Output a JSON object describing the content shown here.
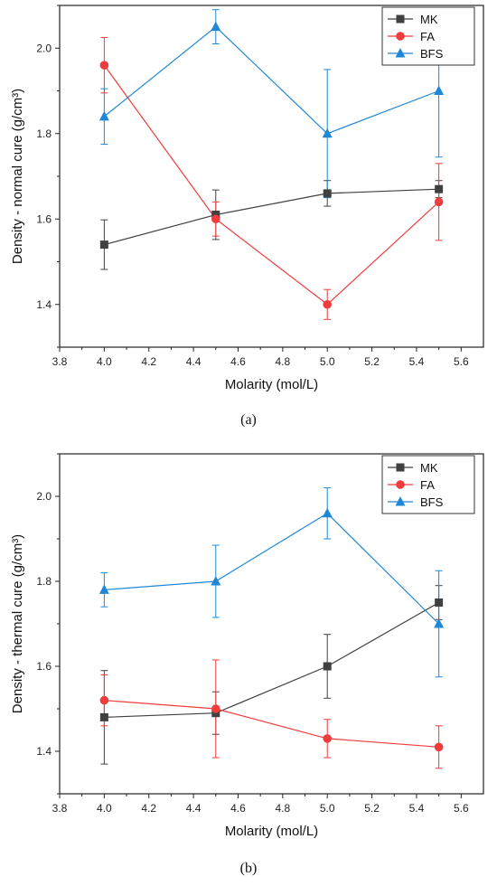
{
  "chart_data": [
    {
      "type": "line",
      "panel": "(a)",
      "xlabel": "Molarity (mol/L)",
      "ylabel": "Density - normal cure (g/cm³)",
      "xlim": [
        3.8,
        5.7
      ],
      "ylim": [
        1.3,
        2.1
      ],
      "xticks": [
        "3.8",
        "4.0",
        "4.2",
        "4.4",
        "4.6",
        "4.8",
        "5.0",
        "5.2",
        "5.4",
        "5.6"
      ],
      "yticks": [
        "1.4",
        "1.6",
        "1.8",
        "2.0"
      ],
      "legend_position": "top-right",
      "x": [
        4.0,
        4.5,
        5.0,
        5.5
      ],
      "series": [
        {
          "name": "MK",
          "color": "#404040",
          "marker": "square",
          "values": [
            1.54,
            1.61,
            1.66,
            1.67
          ],
          "errors": [
            0.058,
            0.058,
            0.03,
            0.02
          ]
        },
        {
          "name": "FA",
          "color": "#f03c3c",
          "marker": "circle",
          "values": [
            1.96,
            1.6,
            1.4,
            1.64
          ],
          "errors": [
            0.065,
            0.04,
            0.035,
            0.09
          ]
        },
        {
          "name": "BFS",
          "color": "#1f88d6",
          "marker": "triangle",
          "values": [
            1.84,
            2.05,
            1.8,
            1.9
          ],
          "errors": [
            0.065,
            0.04,
            0.15,
            0.155
          ]
        }
      ]
    },
    {
      "type": "line",
      "panel": "(b)",
      "xlabel": "Molarity (mol/L)",
      "ylabel": "Density - thermal cure (g/cm³)",
      "xlim": [
        3.8,
        5.7
      ],
      "ylim": [
        1.3,
        2.1
      ],
      "xticks": [
        "3.8",
        "4.0",
        "4.2",
        "4.4",
        "4.6",
        "4.8",
        "5.0",
        "5.2",
        "5.4",
        "5.6"
      ],
      "yticks": [
        "1.4",
        "1.6",
        "1.8",
        "2.0"
      ],
      "legend_position": "top-right",
      "x": [
        4.0,
        4.5,
        5.0,
        5.5
      ],
      "series": [
        {
          "name": "MK",
          "color": "#404040",
          "marker": "square",
          "values": [
            1.48,
            1.49,
            1.6,
            1.75
          ],
          "errors": [
            0.11,
            0.05,
            0.075,
            0.04
          ]
        },
        {
          "name": "FA",
          "color": "#f03c3c",
          "marker": "circle",
          "values": [
            1.52,
            1.5,
            1.43,
            1.41
          ],
          "errors": [
            0.06,
            0.115,
            0.045,
            0.05
          ]
        },
        {
          "name": "BFS",
          "color": "#1f88d6",
          "marker": "triangle",
          "values": [
            1.78,
            1.8,
            1.96,
            1.7
          ],
          "errors": [
            0.04,
            0.085,
            0.06,
            0.125
          ]
        }
      ]
    }
  ]
}
